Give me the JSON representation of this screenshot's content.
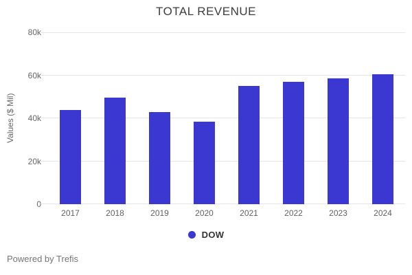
{
  "title": "TOTAL REVENUE",
  "y_axis": {
    "title": "Values ($ Mil)"
  },
  "legend": {
    "label": "DOW"
  },
  "footer": {
    "text": "Powered by Trefis"
  },
  "colors": {
    "bar": "#3b38d1",
    "grid": "#e4e4ec",
    "title_text": "#3c3c3c",
    "axis_text": "#666666"
  },
  "chart_data": {
    "type": "bar",
    "title": "TOTAL REVENUE",
    "xlabel": "",
    "ylabel": "Values ($ Mil)",
    "categories": [
      "2017",
      "2018",
      "2019",
      "2020",
      "2021",
      "2022",
      "2023",
      "2024"
    ],
    "series": [
      {
        "name": "DOW",
        "values": [
          43700,
          49600,
          42950,
          38540,
          54970,
          56900,
          58600,
          60500
        ],
        "color": "#3b38d1"
      }
    ],
    "ylim": [
      0,
      80000
    ],
    "ytick_labels": [
      "80k",
      "60k",
      "40k",
      "20k",
      "0"
    ],
    "ytick_values": [
      80000,
      60000,
      40000,
      20000,
      0
    ],
    "grid": true,
    "legend_position": "bottom"
  }
}
